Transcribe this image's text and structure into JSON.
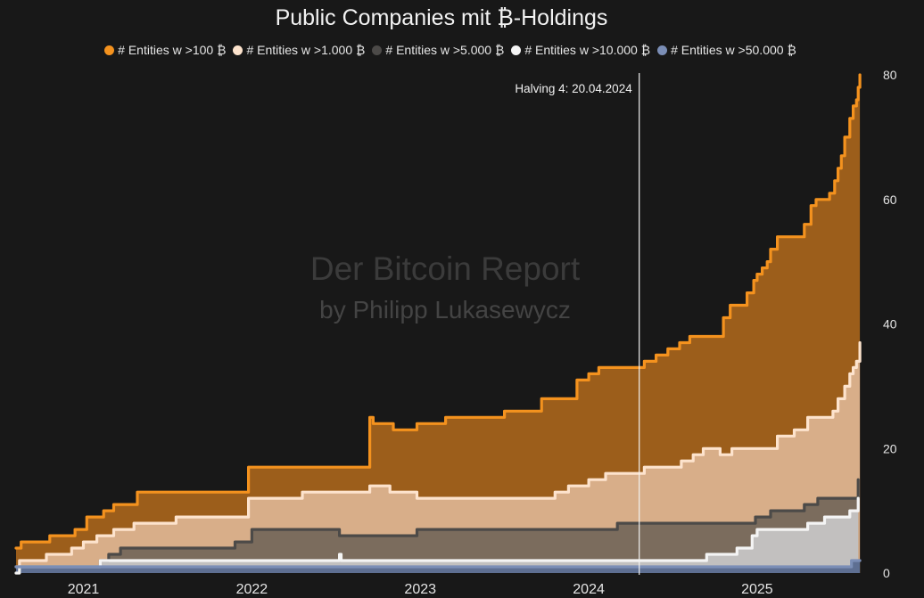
{
  "chart_data": {
    "type": "area",
    "title": "Public Companies mit ₿-Holdings",
    "xlabel": "",
    "ylabel": "",
    "ylim": [
      0,
      80
    ],
    "y_ticks": [
      "0",
      "20",
      "40",
      "60",
      "80"
    ],
    "x_ticks": [
      "2021",
      "2022",
      "2023",
      "2024",
      "2025"
    ],
    "x_tick_values": [
      2021.0,
      2022.0,
      2023.0,
      2024.0,
      2025.0
    ],
    "xlim": [
      2020.6,
      2025.62
    ],
    "stepped": true,
    "y_axis_position": "right",
    "legend_position": "top-center",
    "grid": false,
    "annotation": {
      "label": "Halving 4: 20.04.2024",
      "x": 2024.3
    },
    "watermark": {
      "line1": "Der Bitcoin Report",
      "line2": "by Philipp Lukasewycz"
    },
    "series": [
      {
        "name": "# Entities w >100 ₿",
        "line_color": "#f4921e",
        "fill_color": "#9c5e1b",
        "points": [
          [
            2020.6,
            4
          ],
          [
            2020.63,
            5
          ],
          [
            2020.8,
            6
          ],
          [
            2020.95,
            7
          ],
          [
            2021.02,
            9
          ],
          [
            2021.12,
            10
          ],
          [
            2021.18,
            11
          ],
          [
            2021.32,
            13
          ],
          [
            2021.98,
            17
          ],
          [
            2022.7,
            25
          ],
          [
            2022.72,
            24
          ],
          [
            2022.84,
            23
          ],
          [
            2022.98,
            24
          ],
          [
            2023.15,
            25
          ],
          [
            2023.5,
            26
          ],
          [
            2023.72,
            28
          ],
          [
            2023.93,
            31
          ],
          [
            2024.0,
            32
          ],
          [
            2024.06,
            33
          ],
          [
            2024.26,
            33
          ],
          [
            2024.33,
            34
          ],
          [
            2024.4,
            35
          ],
          [
            2024.47,
            36
          ],
          [
            2024.54,
            37
          ],
          [
            2024.6,
            38
          ],
          [
            2024.8,
            41
          ],
          [
            2024.84,
            43
          ],
          [
            2024.94,
            45
          ],
          [
            2024.98,
            47
          ],
          [
            2025.0,
            48
          ],
          [
            2025.03,
            49
          ],
          [
            2025.06,
            50
          ],
          [
            2025.08,
            52
          ],
          [
            2025.12,
            54
          ],
          [
            2025.28,
            56
          ],
          [
            2025.32,
            59
          ],
          [
            2025.35,
            60
          ],
          [
            2025.43,
            61
          ],
          [
            2025.46,
            63
          ],
          [
            2025.48,
            65
          ],
          [
            2025.5,
            67
          ],
          [
            2025.52,
            70
          ],
          [
            2025.55,
            73
          ],
          [
            2025.57,
            75
          ],
          [
            2025.59,
            76
          ],
          [
            2025.6,
            78
          ],
          [
            2025.61,
            80
          ]
        ]
      },
      {
        "name": "# Entities w >1.000 ₿",
        "line_color": "#fde3cd",
        "fill_color": "#d8ae89",
        "points": [
          [
            2020.6,
            1
          ],
          [
            2020.62,
            2
          ],
          [
            2020.78,
            3
          ],
          [
            2020.93,
            4
          ],
          [
            2021.0,
            5
          ],
          [
            2021.08,
            6
          ],
          [
            2021.18,
            7
          ],
          [
            2021.3,
            8
          ],
          [
            2021.55,
            9
          ],
          [
            2021.98,
            12
          ],
          [
            2022.3,
            13
          ],
          [
            2022.7,
            14
          ],
          [
            2022.82,
            13
          ],
          [
            2022.98,
            12
          ],
          [
            2023.8,
            13
          ],
          [
            2023.88,
            14
          ],
          [
            2024.0,
            15
          ],
          [
            2024.1,
            16
          ],
          [
            2024.26,
            16
          ],
          [
            2024.33,
            17
          ],
          [
            2024.55,
            18
          ],
          [
            2024.62,
            19
          ],
          [
            2024.68,
            20
          ],
          [
            2024.78,
            19
          ],
          [
            2024.85,
            20
          ],
          [
            2025.12,
            22
          ],
          [
            2025.22,
            23
          ],
          [
            2025.3,
            25
          ],
          [
            2025.45,
            26
          ],
          [
            2025.48,
            28
          ],
          [
            2025.52,
            30
          ],
          [
            2025.55,
            32
          ],
          [
            2025.57,
            33
          ],
          [
            2025.59,
            34
          ],
          [
            2025.61,
            37
          ]
        ]
      },
      {
        "name": "# Entities w >5.000 ₿",
        "line_color": "#4c4a48",
        "fill_color": "#7b6c5d",
        "points": [
          [
            2020.6,
            0
          ],
          [
            2020.62,
            1
          ],
          [
            2021.1,
            2
          ],
          [
            2021.15,
            3
          ],
          [
            2021.22,
            4
          ],
          [
            2021.9,
            5
          ],
          [
            2022.0,
            7
          ],
          [
            2022.52,
            6
          ],
          [
            2022.98,
            7
          ],
          [
            2024.17,
            8
          ],
          [
            2024.99,
            9
          ],
          [
            2025.08,
            10
          ],
          [
            2025.28,
            11
          ],
          [
            2025.36,
            12
          ],
          [
            2025.5,
            12
          ],
          [
            2025.6,
            15
          ]
        ]
      },
      {
        "name": "# Entities w >10.000 ₿",
        "line_color": "#f4f4f4",
        "fill_color": "#c2c0bf",
        "points": [
          [
            2020.6,
            0
          ],
          [
            2020.62,
            1
          ],
          [
            2021.1,
            2
          ],
          [
            2022.5,
            2
          ],
          [
            2022.52,
            3
          ],
          [
            2022.53,
            2
          ],
          [
            2024.62,
            2
          ],
          [
            2024.7,
            3
          ],
          [
            2024.88,
            4
          ],
          [
            2024.97,
            6
          ],
          [
            2025.0,
            7
          ],
          [
            2025.2,
            7
          ],
          [
            2025.3,
            8
          ],
          [
            2025.4,
            9
          ],
          [
            2025.55,
            10
          ],
          [
            2025.6,
            12
          ]
        ]
      },
      {
        "name": "# Entities w >50.000 ₿",
        "line_color": "#7b8eb6",
        "fill_color": "#5e6f92",
        "points": [
          [
            2020.6,
            1
          ],
          [
            2025.55,
            1
          ],
          [
            2025.56,
            2
          ],
          [
            2025.61,
            2
          ]
        ]
      }
    ]
  }
}
